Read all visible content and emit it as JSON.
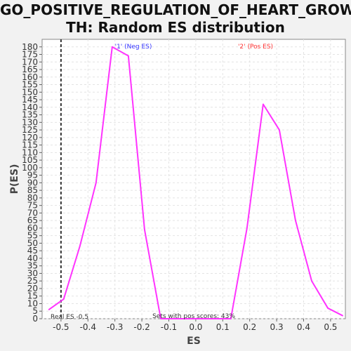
{
  "title_line1": "GO_POSITIVE_REGULATION_OF_HEART_GROW",
  "title_line2": "TH: Random ES distribution",
  "chart_data": {
    "type": "line",
    "xlabel": "ES",
    "ylabel": "P(ES)",
    "xlim": [
      -0.57,
      0.555
    ],
    "ylim": [
      0,
      185
    ],
    "xticks": [
      -0.5,
      -0.4,
      -0.3,
      -0.2,
      -0.1,
      0.0,
      0.1,
      0.2,
      0.3,
      0.4,
      0.5
    ],
    "xtick_labels": [
      "-0.5",
      "-0.4",
      "-0.3",
      "-0.2",
      "-0.1",
      "0.0",
      "0.1",
      "0.2",
      "0.3",
      "0.4",
      "0.5"
    ],
    "yticks": [
      0,
      5,
      10,
      15,
      20,
      25,
      30,
      35,
      40,
      45,
      50,
      55,
      60,
      65,
      70,
      75,
      80,
      85,
      90,
      95,
      100,
      105,
      110,
      115,
      120,
      125,
      130,
      135,
      140,
      145,
      150,
      155,
      160,
      165,
      170,
      175,
      180
    ],
    "grid": true,
    "series": [
      {
        "color": "#ff33ff",
        "x": [
          -0.545,
          -0.49,
          -0.43,
          -0.37,
          -0.31,
          -0.25,
          -0.19,
          -0.13,
          -0.07,
          0.0,
          0.07,
          0.13,
          0.19,
          0.25,
          0.31,
          0.37,
          0.43,
          0.49,
          0.545
        ],
        "y": [
          6,
          13,
          48,
          90,
          180,
          174,
          59,
          0,
          0,
          0,
          0,
          0,
          60,
          142,
          125,
          65,
          25,
          7,
          2
        ]
      }
    ],
    "real_es_value": -0.5,
    "real_es_color": "#333333",
    "label_neg": "'1' (Neg ES)",
    "label_neg_color": "#3333ff",
    "label_pos": "'2' (Pos ES)",
    "label_pos_color": "#ff3333",
    "real_es_label": "Real ES -0.5",
    "pos_scores_label": "Sets with pos scores: 43%"
  }
}
